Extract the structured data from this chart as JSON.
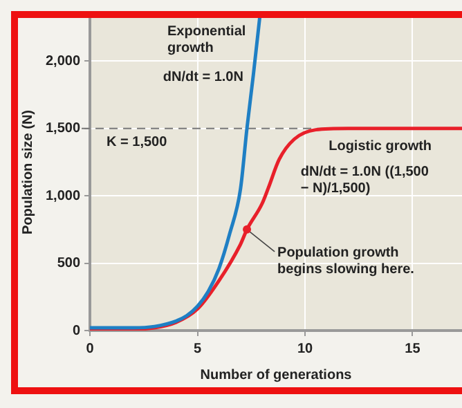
{
  "chart_data": {
    "type": "line",
    "xlabel": "Number of generations",
    "ylabel": "Population size (N)",
    "xlim": [
      0,
      17.3
    ],
    "ylim": [
      0,
      2350
    ],
    "xticks": [
      0,
      5,
      10,
      15
    ],
    "yticks": [
      0,
      {
        "value": 500,
        "label": "500"
      },
      {
        "value": 1000,
        "label": "1,000"
      },
      {
        "value": 1500,
        "label": "1,500"
      },
      {
        "value": 2000,
        "label": "2,000"
      }
    ],
    "grid": true,
    "legend": false,
    "marker": "none",
    "line_style": "solid",
    "series": [
      {
        "color": "#1f7fc4",
        "x": [
          0,
          2,
          3,
          4,
          4.5,
          5,
          5.5,
          6,
          6.5,
          7,
          7.3,
          7.6,
          7.9
        ],
        "values": [
          20,
          20,
          30,
          70,
          110,
          180,
          290,
          460,
          720,
          1050,
          1500,
          1900,
          2330
        ]
      },
      {
        "color": "#e8202a",
        "x": [
          0,
          2,
          3,
          4,
          5,
          6,
          7,
          7.3,
          8,
          8.3,
          8.8,
          9.5,
          10.5,
          12,
          13,
          17.3
        ],
        "values": [
          10,
          10,
          20,
          60,
          160,
          370,
          640,
          750,
          940,
          1060,
          1270,
          1420,
          1490,
          1500,
          1500,
          1500
        ]
      }
    ],
    "ref_lines": [
      {
        "axis": "y",
        "value": 1500,
        "label": "K = 1,500",
        "color": "#777777",
        "line_style": "dashed"
      }
    ],
    "annotations": [
      "Exponential growth",
      "dN/dt = 1.0N",
      "Logistic growth",
      "dN/dt = 1.0N ((1,500 − N)/1,500)",
      {
        "text": "Population growth begins slowing here.",
        "x": 7.3,
        "y": 750
      }
    ]
  }
}
